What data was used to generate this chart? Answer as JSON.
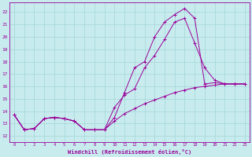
{
  "xlabel": "Windchill (Refroidissement éolien,°C)",
  "bg_color": "#c8ecee",
  "grid_color": "#a8d8dc",
  "line_color": "#990099",
  "xlim": [
    -0.5,
    23.5
  ],
  "ylim": [
    11.5,
    22.8
  ],
  "xticks": [
    0,
    1,
    2,
    3,
    4,
    5,
    6,
    7,
    8,
    9,
    10,
    11,
    12,
    13,
    14,
    15,
    16,
    17,
    18,
    19,
    20,
    21,
    22,
    23
  ],
  "yticks": [
    12,
    13,
    14,
    15,
    16,
    17,
    18,
    19,
    20,
    21,
    22
  ],
  "series": [
    {
      "x": [
        0,
        1,
        2,
        3,
        4,
        5,
        6,
        7,
        8,
        9,
        10,
        11,
        12,
        13,
        14,
        15,
        16,
        17,
        18,
        19,
        20,
        21,
        22,
        23
      ],
      "y": [
        13.7,
        12.5,
        12.6,
        13.4,
        13.5,
        13.4,
        13.2,
        12.5,
        12.5,
        12.5,
        13.5,
        15.5,
        17.5,
        18.0,
        20.0,
        21.2,
        21.8,
        22.3,
        21.5,
        16.2,
        16.3,
        16.2,
        16.2,
        16.2
      ]
    },
    {
      "x": [
        0,
        1,
        2,
        3,
        4,
        5,
        6,
        7,
        8,
        9,
        10,
        11,
        12,
        13,
        14,
        15,
        16,
        17,
        18,
        19,
        20,
        21,
        22,
        23
      ],
      "y": [
        13.7,
        12.5,
        12.6,
        13.4,
        13.5,
        13.4,
        13.2,
        12.5,
        12.5,
        12.5,
        14.3,
        15.3,
        15.8,
        17.5,
        18.5,
        19.8,
        21.2,
        21.5,
        19.5,
        17.5,
        16.5,
        16.2,
        16.2,
        16.2
      ]
    },
    {
      "x": [
        0,
        1,
        2,
        3,
        4,
        5,
        6,
        7,
        8,
        9,
        10,
        11,
        12,
        13,
        14,
        15,
        16,
        17,
        18,
        19,
        20,
        21,
        22,
        23
      ],
      "y": [
        13.7,
        12.5,
        12.6,
        13.4,
        13.5,
        13.4,
        13.2,
        12.5,
        12.5,
        12.5,
        13.2,
        13.8,
        14.2,
        14.6,
        14.9,
        15.2,
        15.5,
        15.7,
        15.9,
        16.0,
        16.1,
        16.2,
        16.2,
        16.2
      ]
    }
  ]
}
